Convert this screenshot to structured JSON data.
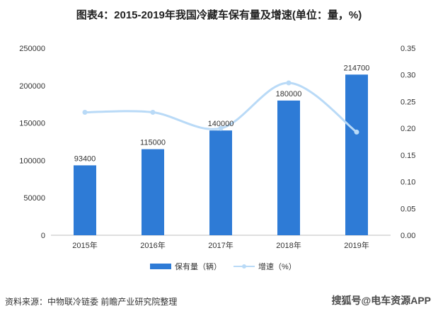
{
  "title": "图表4：2015-2019年我国冷藏车保有量及增速(单位：量，%)",
  "source": "资料来源：中物联冷链委 前瞻产业研究院整理",
  "watermark_text": "搜狐号@电车资源APP",
  "colors": {
    "bar": "#2e7bd6",
    "line": "#b9daf7",
    "axis_text": "#333333"
  },
  "chart_data": {
    "type": "bar",
    "categories": [
      "2015年",
      "2016年",
      "2017年",
      "2018年",
      "2019年"
    ],
    "series": [
      {
        "name": "保有量（辆）",
        "type": "bar",
        "axis": "left",
        "values": [
          93400,
          115000,
          140000,
          180000,
          214700
        ],
        "labels": [
          "93400",
          "115000",
          "140000",
          "180000",
          "214700"
        ]
      },
      {
        "name": "增速（%）",
        "type": "line",
        "axis": "right",
        "smooth": true,
        "values": [
          0.23,
          0.23,
          0.2,
          0.285,
          0.193
        ]
      }
    ],
    "y_left": {
      "min": 0,
      "max": 250000,
      "ticks": [
        "0",
        "50000",
        "100000",
        "150000",
        "200000",
        "250000"
      ]
    },
    "y_right": {
      "min": 0,
      "max": 0.35,
      "ticks": [
        "0.00",
        "0.05",
        "0.10",
        "0.15",
        "0.20",
        "0.25",
        "0.30",
        "0.35"
      ]
    },
    "grid": false,
    "legend": "bottom"
  }
}
